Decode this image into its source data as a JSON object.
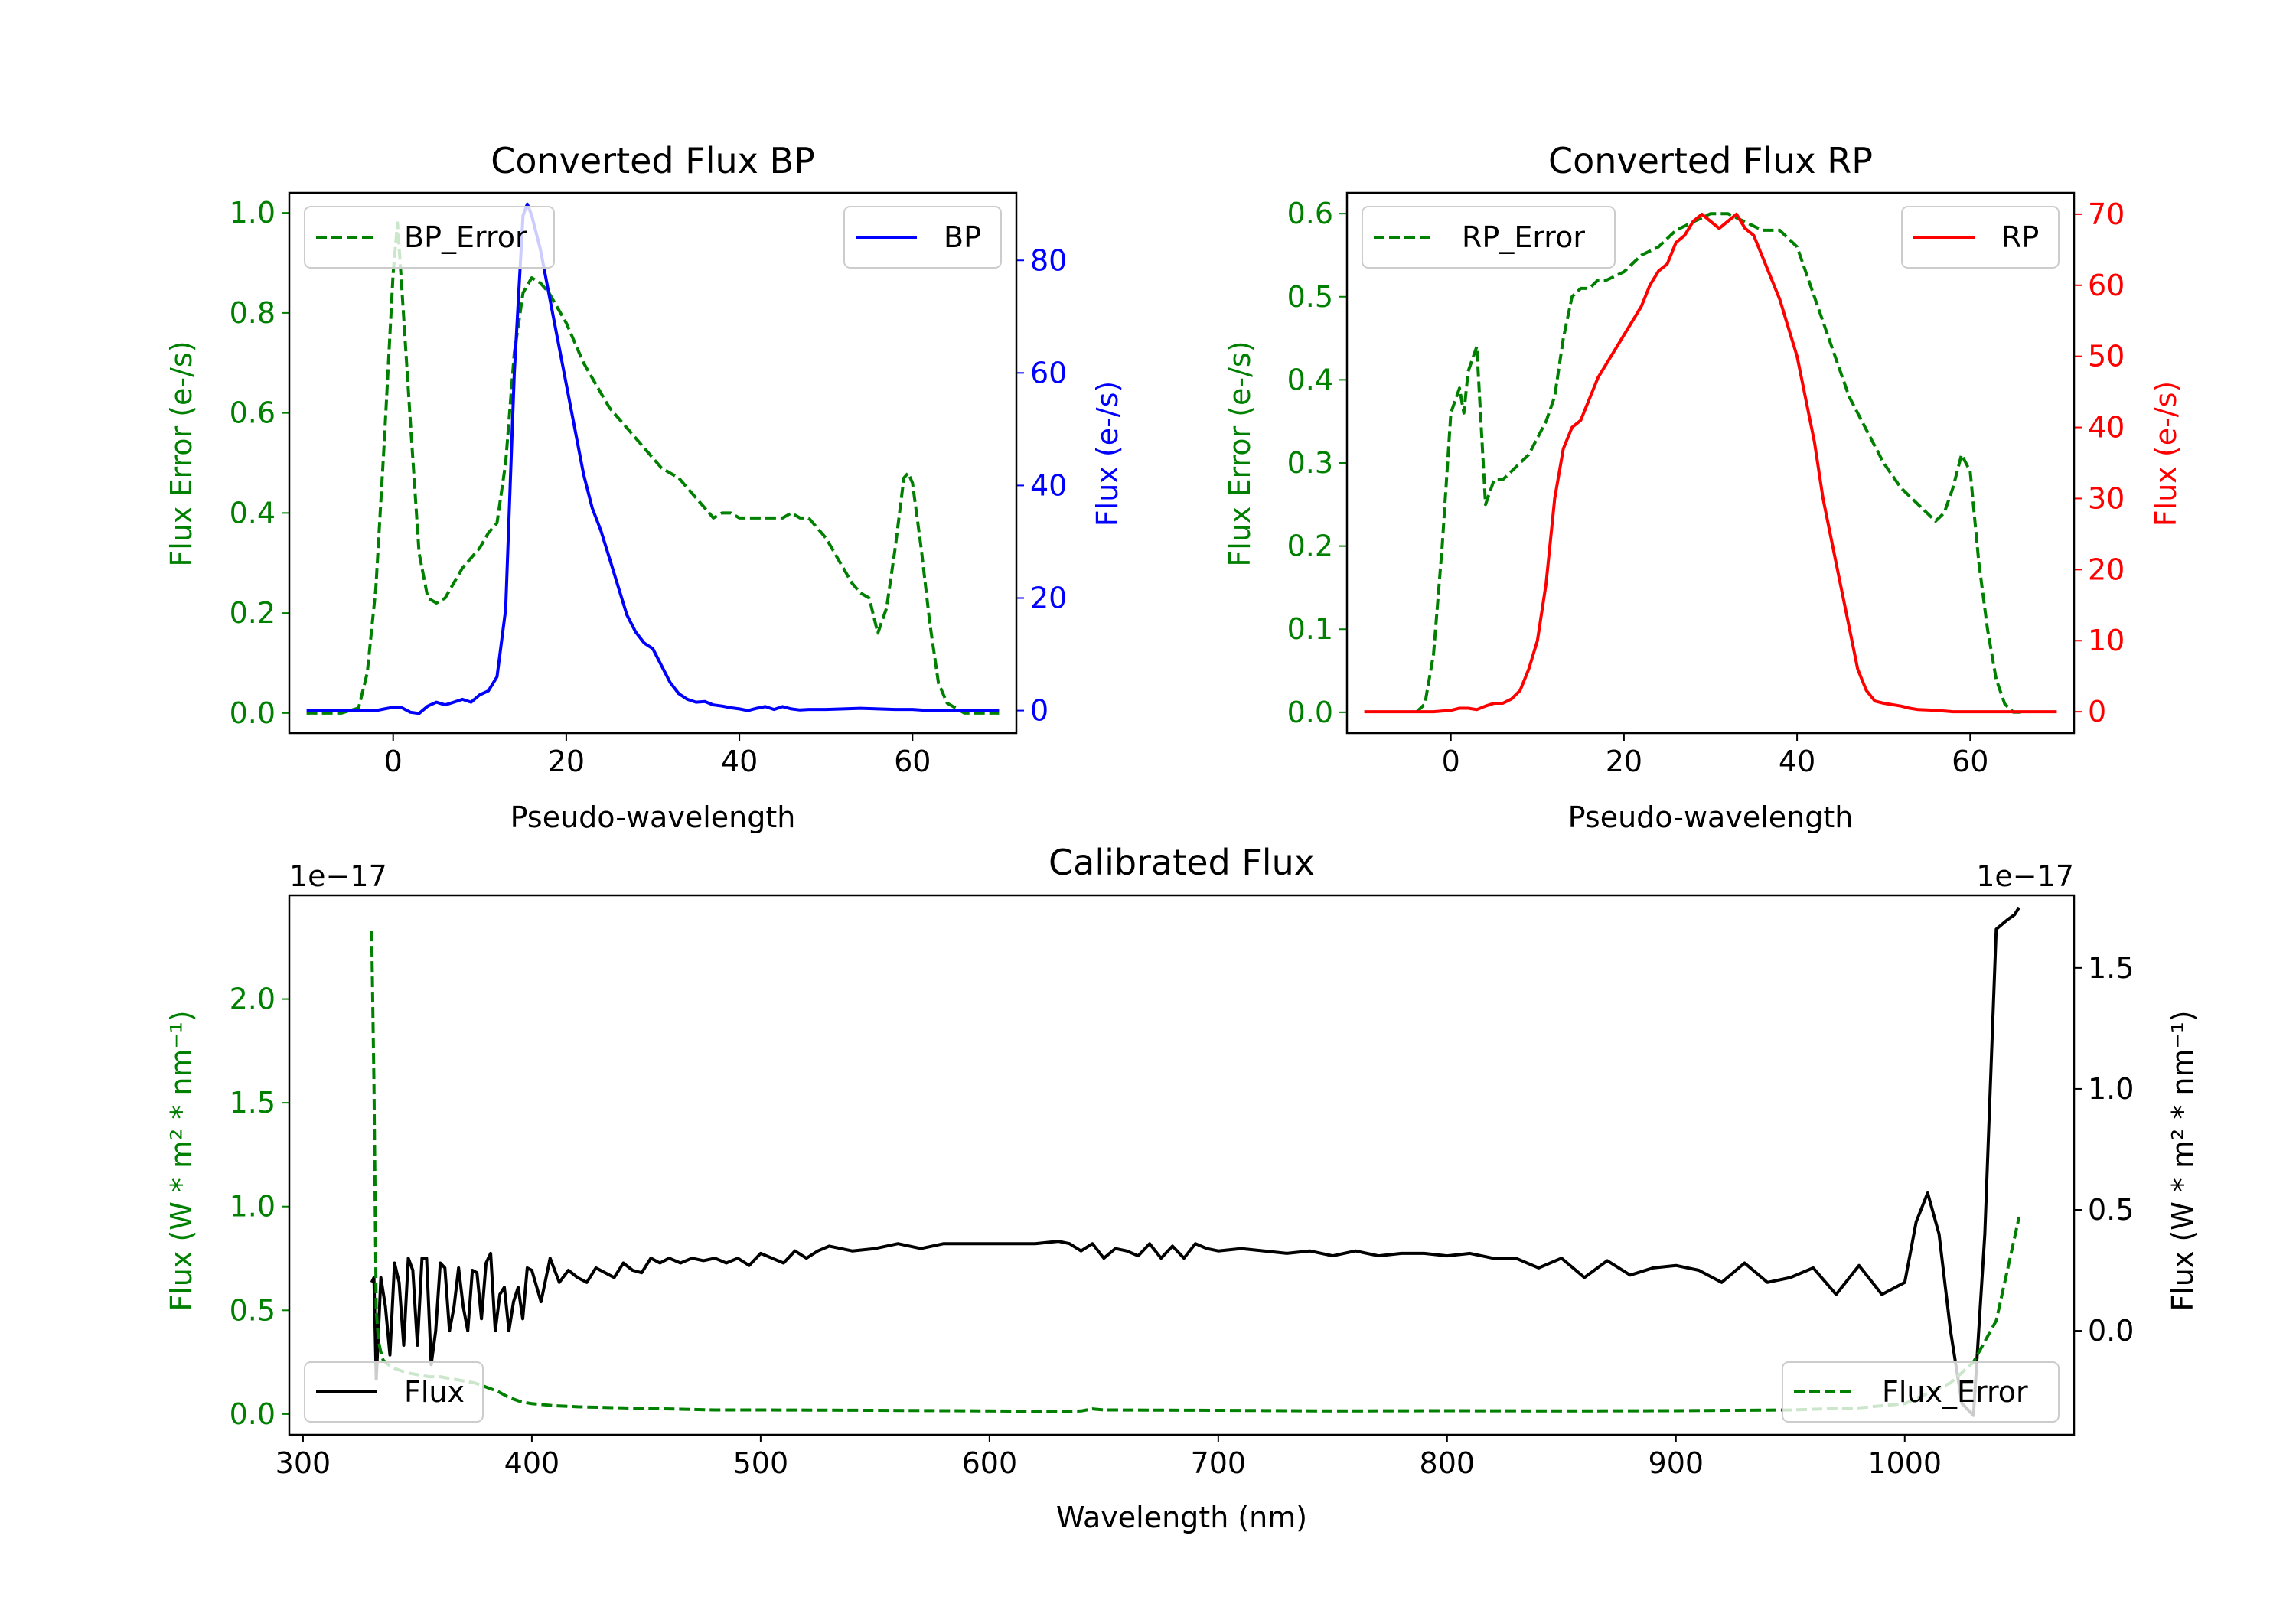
{
  "chart_data": [
    {
      "type": "line",
      "title": "Converted Flux BP",
      "xlabel": "Pseudo-wavelength",
      "xlim": [
        -12,
        72
      ],
      "xticks": [
        0,
        20,
        40,
        60
      ],
      "left_axis": {
        "label": "Flux Error (e-/s)",
        "ylim": [
          -0.04,
          1.04
        ],
        "ticks": [
          0.0,
          0.2,
          0.4,
          0.6,
          0.8,
          1.0
        ],
        "tick_labels": [
          "0.0",
          "0.2",
          "0.4",
          "0.6",
          "0.8",
          "1.0"
        ],
        "color": "#008000"
      },
      "right_axis": {
        "label": "Flux (e-/s)",
        "ylim": [
          -4,
          92
        ],
        "ticks": [
          0,
          20,
          40,
          60,
          80
        ],
        "tick_labels": [
          "0",
          "20",
          "40",
          "60",
          "80"
        ],
        "color": "#0000ff"
      },
      "legend_left": "top-left",
      "legend_right": "top-right",
      "series": [
        {
          "name": "BP_Error",
          "axis": "left",
          "style": "dashed",
          "color": "#008000",
          "x": [
            -10,
            -6,
            -4,
            -3,
            -2,
            -1,
            0,
            0.5,
            1,
            2,
            3,
            4,
            5,
            6,
            7,
            8,
            9,
            10,
            11,
            12,
            13,
            14,
            15,
            16,
            17,
            18,
            19,
            20,
            21,
            22,
            23,
            24,
            25,
            26,
            27,
            28,
            29,
            30,
            31,
            32,
            33,
            34,
            35,
            36,
            37,
            38,
            39,
            40,
            41,
            42,
            43,
            44,
            45,
            46,
            47,
            48,
            49,
            50,
            51,
            52,
            53,
            54,
            55,
            56,
            57,
            58,
            59,
            59.5,
            60,
            61,
            62,
            63,
            64,
            65,
            66,
            67,
            68,
            69,
            70
          ],
          "y": [
            0.0,
            0.0,
            0.01,
            0.08,
            0.25,
            0.55,
            0.88,
            0.98,
            0.85,
            0.58,
            0.32,
            0.23,
            0.22,
            0.23,
            0.26,
            0.29,
            0.31,
            0.33,
            0.36,
            0.38,
            0.5,
            0.72,
            0.84,
            0.87,
            0.86,
            0.84,
            0.81,
            0.78,
            0.74,
            0.7,
            0.67,
            0.64,
            0.61,
            0.59,
            0.57,
            0.55,
            0.53,
            0.51,
            0.49,
            0.48,
            0.47,
            0.45,
            0.43,
            0.41,
            0.39,
            0.4,
            0.4,
            0.39,
            0.39,
            0.39,
            0.39,
            0.39,
            0.39,
            0.4,
            0.39,
            0.39,
            0.37,
            0.35,
            0.32,
            0.29,
            0.26,
            0.24,
            0.23,
            0.16,
            0.21,
            0.33,
            0.47,
            0.48,
            0.46,
            0.33,
            0.18,
            0.06,
            0.02,
            0.01,
            0.0,
            0.0,
            0.0,
            0.0,
            0.0
          ]
        },
        {
          "name": "BP",
          "axis": "right",
          "style": "solid",
          "color": "#0000ff",
          "x": [
            -10,
            -8,
            -6,
            -4,
            -2,
            -1,
            0,
            1,
            2,
            3,
            4,
            5,
            6,
            7,
            8,
            9,
            10,
            11,
            12,
            13,
            14,
            15,
            15.5,
            16,
            17,
            18,
            19,
            20,
            21,
            22,
            23,
            24,
            25,
            26,
            27,
            28,
            29,
            30,
            31,
            32,
            33,
            34,
            35,
            36,
            37,
            38,
            39,
            40,
            41,
            42,
            43,
            44,
            45,
            46,
            47,
            48,
            50,
            52,
            54,
            56,
            58,
            60,
            62,
            64,
            66,
            68,
            70
          ],
          "y": [
            0,
            0,
            0,
            0,
            0,
            0.3,
            0.6,
            0.5,
            -0.3,
            -0.5,
            0.8,
            1.5,
            1,
            1.5,
            2,
            1.5,
            2.8,
            3.5,
            6,
            18,
            60,
            88,
            90,
            88,
            82,
            74,
            66,
            58,
            50,
            42,
            36,
            32,
            27,
            22,
            17,
            14,
            12,
            11,
            8,
            5,
            3,
            2,
            1.5,
            1.6,
            1,
            0.8,
            0.5,
            0.3,
            0,
            0.4,
            0.7,
            0.2,
            0.7,
            0.3,
            0.1,
            0.2,
            0.2,
            0.3,
            0.4,
            0.3,
            0.2,
            0.2,
            0,
            0,
            0,
            0,
            0
          ]
        }
      ]
    },
    {
      "type": "line",
      "title": "Converted Flux RP",
      "xlabel": "Pseudo-wavelength",
      "xlim": [
        -12,
        72
      ],
      "xticks": [
        0,
        20,
        40,
        60
      ],
      "left_axis": {
        "label": "Flux Error (e-/s)",
        "ylim": [
          -0.025,
          0.625
        ],
        "ticks": [
          0.0,
          0.1,
          0.2,
          0.3,
          0.4,
          0.5,
          0.6
        ],
        "tick_labels": [
          "0.0",
          "0.1",
          "0.2",
          "0.3",
          "0.4",
          "0.5",
          "0.6"
        ],
        "color": "#008000"
      },
      "right_axis": {
        "label": "Flux (e-/s)",
        "ylim": [
          -3,
          73
        ],
        "ticks": [
          0,
          10,
          20,
          30,
          40,
          50,
          60,
          70
        ],
        "tick_labels": [
          "0",
          "10",
          "20",
          "30",
          "40",
          "50",
          "60",
          "70"
        ],
        "color": "#ff0000"
      },
      "legend_left": "top-left",
      "legend_right": "top-right",
      "series": [
        {
          "name": "RP_Error",
          "axis": "left",
          "style": "dashed",
          "color": "#008000",
          "x": [
            -4,
            -3,
            -2,
            -1,
            0,
            1,
            1.5,
            2,
            3,
            4,
            5,
            6,
            7,
            8,
            9,
            10,
            11,
            12,
            13,
            14,
            15,
            16,
            17,
            18,
            20,
            22,
            24,
            26,
            28,
            30,
            32,
            34,
            36,
            38,
            40,
            42,
            44,
            46,
            48,
            50,
            52,
            54,
            55,
            56,
            57,
            58,
            59,
            60,
            61,
            62,
            63,
            64,
            65,
            66
          ],
          "y": [
            0.0,
            0.01,
            0.07,
            0.2,
            0.36,
            0.39,
            0.36,
            0.41,
            0.44,
            0.25,
            0.28,
            0.28,
            0.29,
            0.3,
            0.31,
            0.33,
            0.35,
            0.38,
            0.45,
            0.5,
            0.51,
            0.51,
            0.52,
            0.52,
            0.53,
            0.55,
            0.56,
            0.58,
            0.59,
            0.6,
            0.6,
            0.59,
            0.58,
            0.58,
            0.56,
            0.5,
            0.44,
            0.38,
            0.34,
            0.3,
            0.27,
            0.25,
            0.24,
            0.23,
            0.24,
            0.27,
            0.31,
            0.29,
            0.18,
            0.1,
            0.04,
            0.01,
            0.0,
            0.0
          ]
        },
        {
          "name": "RP",
          "axis": "right",
          "style": "solid",
          "color": "#ff0000",
          "x": [
            -10,
            -6,
            -4,
            -2,
            0,
            1,
            2,
            3,
            4,
            5,
            6,
            7,
            8,
            9,
            10,
            11,
            12,
            13,
            14,
            15,
            16,
            17,
            18,
            19,
            20,
            21,
            22,
            23,
            24,
            25,
            26,
            27,
            28,
            29,
            30,
            31,
            32,
            33,
            34,
            35,
            36,
            37,
            38,
            39,
            40,
            41,
            42,
            43,
            44,
            45,
            46,
            47,
            48,
            49,
            50,
            51,
            52,
            53,
            54,
            56,
            58,
            60,
            62,
            64,
            66,
            68,
            70
          ],
          "y": [
            0,
            0,
            0,
            0,
            0.2,
            0.5,
            0.5,
            0.3,
            0.8,
            1.2,
            1.2,
            1.8,
            3,
            6,
            10,
            18,
            30,
            37,
            40,
            41,
            44,
            47,
            49,
            51,
            53,
            55,
            57,
            60,
            62,
            63,
            66,
            67,
            69,
            70,
            69,
            68,
            69,
            70,
            68,
            67,
            64,
            61,
            58,
            54,
            50,
            44,
            38,
            30,
            24,
            18,
            12,
            6,
            3,
            1.5,
            1.2,
            1,
            0.8,
            0.5,
            0.3,
            0.2,
            0,
            0,
            0,
            0,
            0,
            0,
            0
          ]
        }
      ]
    },
    {
      "type": "line",
      "title": "Calibrated Flux",
      "xlabel": "Wavelength (nm)",
      "xlim": [
        294,
        1074
      ],
      "xticks": [
        300,
        400,
        500,
        600,
        700,
        800,
        900,
        1000
      ],
      "left_axis": {
        "label": "Flux (W * m² * nm⁻¹)",
        "offset_text": "1e−17",
        "ylim": [
          -0.1,
          2.5
        ],
        "ticks": [
          0.0,
          0.5,
          1.0,
          1.5,
          2.0
        ],
        "tick_labels": [
          "0.0",
          "0.5",
          "1.0",
          "1.5",
          "2.0"
        ],
        "color": "#008000"
      },
      "right_axis": {
        "label": "Flux (W * m² * nm⁻¹)",
        "offset_text": "1e−17",
        "ylim": [
          -0.43,
          1.8
        ],
        "ticks": [
          0.0,
          0.5,
          1.0,
          1.5
        ],
        "tick_labels": [
          "0.0",
          "0.5",
          "1.0",
          "1.5"
        ],
        "color": "#000000"
      },
      "legend_left": "bottom-left",
      "legend_right": "bottom-right",
      "series": [
        {
          "name": "Flux",
          "axis": "right",
          "style": "solid",
          "color": "#000000",
          "label": "Flux",
          "x": [
            330,
            331,
            332,
            333,
            334,
            336,
            338,
            340,
            342,
            344,
            346,
            348,
            350,
            352,
            354,
            356,
            358,
            360,
            362,
            364,
            366,
            368,
            370,
            372,
            374,
            376,
            378,
            380,
            382,
            384,
            386,
            388,
            390,
            392,
            394,
            396,
            398,
            400,
            404,
            408,
            412,
            416,
            420,
            424,
            428,
            432,
            436,
            440,
            444,
            448,
            452,
            456,
            460,
            465,
            470,
            475,
            480,
            485,
            490,
            495,
            500,
            505,
            510,
            515,
            520,
            525,
            530,
            540,
            550,
            560,
            570,
            580,
            590,
            600,
            610,
            620,
            630,
            635,
            640,
            645,
            650,
            655,
            660,
            665,
            670,
            675,
            680,
            685,
            690,
            695,
            700,
            710,
            720,
            730,
            740,
            750,
            760,
            770,
            780,
            790,
            800,
            810,
            820,
            830,
            840,
            850,
            860,
            870,
            880,
            890,
            900,
            910,
            920,
            930,
            940,
            950,
            960,
            970,
            980,
            990,
            1000,
            1005,
            1010,
            1015,
            1020,
            1025,
            1030,
            1035,
            1040,
            1045,
            1048,
            1050
          ],
          "y": [
            0.2,
            0.22,
            -0.2,
            0.0,
            0.22,
            0.1,
            -0.1,
            0.28,
            0.2,
            -0.06,
            0.3,
            0.25,
            -0.06,
            0.3,
            0.3,
            -0.14,
            0.0,
            0.28,
            0.26,
            0.0,
            0.1,
            0.26,
            0.1,
            0.0,
            0.25,
            0.24,
            0.05,
            0.28,
            0.32,
            0.0,
            0.15,
            0.18,
            0.0,
            0.12,
            0.18,
            0.05,
            0.26,
            0.25,
            0.12,
            0.3,
            0.2,
            0.25,
            0.22,
            0.2,
            0.26,
            0.24,
            0.22,
            0.28,
            0.25,
            0.24,
            0.3,
            0.28,
            0.3,
            0.28,
            0.3,
            0.29,
            0.3,
            0.28,
            0.3,
            0.27,
            0.32,
            0.3,
            0.28,
            0.33,
            0.3,
            0.33,
            0.35,
            0.33,
            0.34,
            0.36,
            0.34,
            0.36,
            0.36,
            0.36,
            0.36,
            0.36,
            0.37,
            0.36,
            0.33,
            0.36,
            0.3,
            0.34,
            0.33,
            0.31,
            0.36,
            0.3,
            0.35,
            0.3,
            0.36,
            0.34,
            0.33,
            0.34,
            0.33,
            0.32,
            0.33,
            0.31,
            0.33,
            0.31,
            0.32,
            0.32,
            0.31,
            0.32,
            0.3,
            0.3,
            0.26,
            0.3,
            0.22,
            0.29,
            0.23,
            0.26,
            0.27,
            0.25,
            0.2,
            0.28,
            0.2,
            0.22,
            0.26,
            0.15,
            0.27,
            0.15,
            0.2,
            0.45,
            0.57,
            0.4,
            0.0,
            -0.3,
            -0.35,
            0.4,
            1.66,
            1.7,
            1.72,
            1.75
          ]
        },
        {
          "name": "Flux_Error",
          "axis": "left",
          "style": "dashed",
          "color": "#008000",
          "label": "Flux_Error",
          "x": [
            330,
            331,
            332,
            333,
            334,
            335,
            337,
            340,
            345,
            350,
            355,
            360,
            365,
            370,
            375,
            380,
            385,
            390,
            395,
            400,
            410,
            420,
            440,
            460,
            480,
            500,
            550,
            600,
            630,
            640,
            645,
            650,
            700,
            750,
            800,
            850,
            900,
            950,
            980,
            1000,
            1010,
            1020,
            1030,
            1040,
            1045,
            1050
          ],
          "y": [
            2.33,
            1.6,
            0.5,
            0.35,
            0.3,
            0.26,
            0.24,
            0.22,
            0.2,
            0.19,
            0.18,
            0.18,
            0.17,
            0.16,
            0.15,
            0.13,
            0.11,
            0.08,
            0.06,
            0.05,
            0.04,
            0.035,
            0.03,
            0.025,
            0.02,
            0.02,
            0.018,
            0.015,
            0.012,
            0.015,
            0.025,
            0.02,
            0.018,
            0.015,
            0.016,
            0.015,
            0.016,
            0.02,
            0.03,
            0.05,
            0.1,
            0.15,
            0.25,
            0.45,
            0.7,
            0.95
          ]
        }
      ]
    }
  ]
}
